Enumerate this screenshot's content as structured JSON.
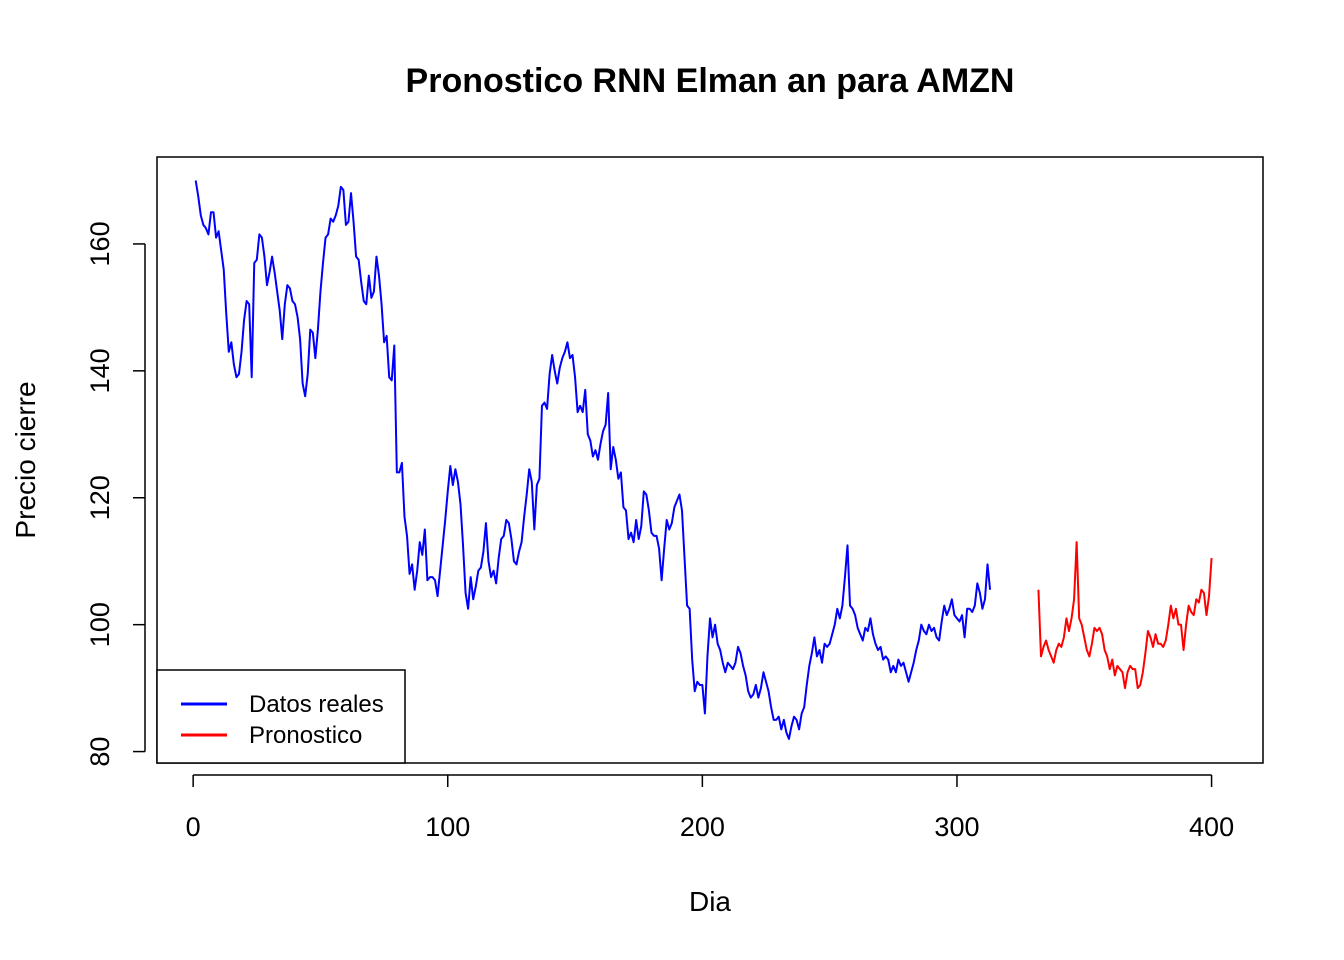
{
  "chart_data": {
    "type": "line",
    "title": "Pronostico RNN Elman an para  AMZN",
    "xlabel": "Dia",
    "ylabel": "Precio cierre",
    "xlim": [
      -14.2,
      420.2
    ],
    "ylim": [
      78.2,
      173.7
    ],
    "xticks": [
      0,
      100,
      200,
      300,
      400
    ],
    "yticks": [
      80,
      100,
      120,
      140,
      160
    ],
    "xtick_labels": [
      "0",
      "100",
      "200",
      "300",
      "400"
    ],
    "ytick_labels": [
      "80",
      "100",
      "120",
      "140",
      "160"
    ],
    "grid": false,
    "legend_position": "bottom-left",
    "series": [
      {
        "name": "Datos reales",
        "color": "#0000FF",
        "x_start": 1,
        "values": [
          170.0,
          167.5,
          164.5,
          163.0,
          162.5,
          161.5,
          165.0,
          165.0,
          161.0,
          162.0,
          159.0,
          156.0,
          149.0,
          143.0,
          144.5,
          141.0,
          139.0,
          139.5,
          143.0,
          148.0,
          151.0,
          150.5,
          139.0,
          157.0,
          157.5,
          161.5,
          161.0,
          158.0,
          153.5,
          155.5,
          158.0,
          155.5,
          152.5,
          149.5,
          145.0,
          150.5,
          153.5,
          153.0,
          151.0,
          150.5,
          148.5,
          145.0,
          138.0,
          136.0,
          139.5,
          146.5,
          146.0,
          142.0,
          146.5,
          152.5,
          157.0,
          161.0,
          161.5,
          164.0,
          163.5,
          164.5,
          166.0,
          169.0,
          168.5,
          163.0,
          163.5,
          168.0,
          163.5,
          158.0,
          157.5,
          154.0,
          151.0,
          150.5,
          155.0,
          151.5,
          152.5,
          158.0,
          155.0,
          150.5,
          144.5,
          145.5,
          139.0,
          138.5,
          144.0,
          124.0,
          124.0,
          125.5,
          117.0,
          114.0,
          108.0,
          109.5,
          105.5,
          108.5,
          113.0,
          111.0,
          115.0,
          107.0,
          107.5,
          107.5,
          107.0,
          104.5,
          108.5,
          112.5,
          116.5,
          121.0,
          125.0,
          122.0,
          124.5,
          122.5,
          119.0,
          112.5,
          105.0,
          102.5,
          107.5,
          104.0,
          106.0,
          108.5,
          109.0,
          111.5,
          116.0,
          110.0,
          107.5,
          108.5,
          106.5,
          110.5,
          113.5,
          114.0,
          116.5,
          116.0,
          113.5,
          110.0,
          109.5,
          111.5,
          113.0,
          117.0,
          120.5,
          124.5,
          122.5,
          115.0,
          122.0,
          123.0,
          134.5,
          135.0,
          134.0,
          139.5,
          142.5,
          140.0,
          138.0,
          140.5,
          142.0,
          143.0,
          144.5,
          142.0,
          142.5,
          139.0,
          133.5,
          134.5,
          133.5,
          137.0,
          130.0,
          129.0,
          126.5,
          127.5,
          126.0,
          128.5,
          130.5,
          131.5,
          136.5,
          124.5,
          128.0,
          126.0,
          123.0,
          124.0,
          118.5,
          118.0,
          113.5,
          114.5,
          113.0,
          116.5,
          113.5,
          115.5,
          121.0,
          120.5,
          118.0,
          114.5,
          114.0,
          114.0,
          112.0,
          107.0,
          112.0,
          116.5,
          115.0,
          116.0,
          118.5,
          119.5,
          120.5,
          118.0,
          110.5,
          103.0,
          102.5,
          94.5,
          89.5,
          91.0,
          90.5,
          90.5,
          86.0,
          95.0,
          101.0,
          98.0,
          100.0,
          97.0,
          96.0,
          94.0,
          92.5,
          94.0,
          93.5,
          93.0,
          94.0,
          96.5,
          95.5,
          93.5,
          92.0,
          89.5,
          88.5,
          89.0,
          90.5,
          88.5,
          90.0,
          92.5,
          91.0,
          89.5,
          87.0,
          85.0,
          85.0,
          85.5,
          83.5,
          85.0,
          83.0,
          82.0,
          84.0,
          85.5,
          85.0,
          83.5,
          86.0,
          87.0,
          90.5,
          93.5,
          95.5,
          98.0,
          95.0,
          96.0,
          94.0,
          97.0,
          96.5,
          97.0,
          98.5,
          100.0,
          102.5,
          101.0,
          103.0,
          107.5,
          112.5,
          103.0,
          102.5,
          101.5,
          99.5,
          98.5,
          97.5,
          99.5,
          99.0,
          101.0,
          98.5,
          97.0,
          96.0,
          96.5,
          94.5,
          95.0,
          94.5,
          92.5,
          93.5,
          92.5,
          94.5,
          93.5,
          94.0,
          92.5,
          91.0,
          92.5,
          94.0,
          96.0,
          97.5,
          100.0,
          99.0,
          98.5,
          100.0,
          99.0,
          99.5,
          98.0,
          97.5,
          100.5,
          103.0,
          101.5,
          102.5,
          104.0,
          101.5,
          101.0,
          100.5,
          101.5,
          98.0,
          102.5,
          102.5,
          102.0,
          103.0,
          106.5,
          105.0,
          102.5,
          104.0,
          109.5,
          105.5
        ]
      },
      {
        "name": "Pronostico",
        "color": "#FF0000",
        "x_start": 332,
        "values": [
          105.5,
          95.0,
          96.5,
          97.5,
          96.0,
          95.0,
          94.0,
          96.0,
          97.0,
          96.5,
          98.0,
          101.0,
          99.0,
          101.0,
          104.0,
          113.0,
          101.0,
          100.0,
          98.0,
          96.0,
          95.0,
          97.0,
          99.5,
          99.0,
          99.5,
          98.5,
          96.0,
          95.0,
          93.0,
          94.5,
          92.0,
          93.5,
          93.0,
          92.5,
          90.0,
          92.5,
          93.5,
          93.0,
          93.0,
          90.0,
          90.5,
          92.5,
          95.5,
          99.0,
          98.0,
          96.5,
          98.5,
          97.0,
          97.0,
          96.5,
          97.5,
          100.0,
          103.0,
          101.0,
          102.5,
          100.0,
          100.0,
          96.0,
          100.0,
          103.0,
          102.0,
          101.5,
          104.0,
          103.5,
          105.5,
          105.0,
          101.5,
          104.5,
          110.5
        ]
      }
    ]
  }
}
